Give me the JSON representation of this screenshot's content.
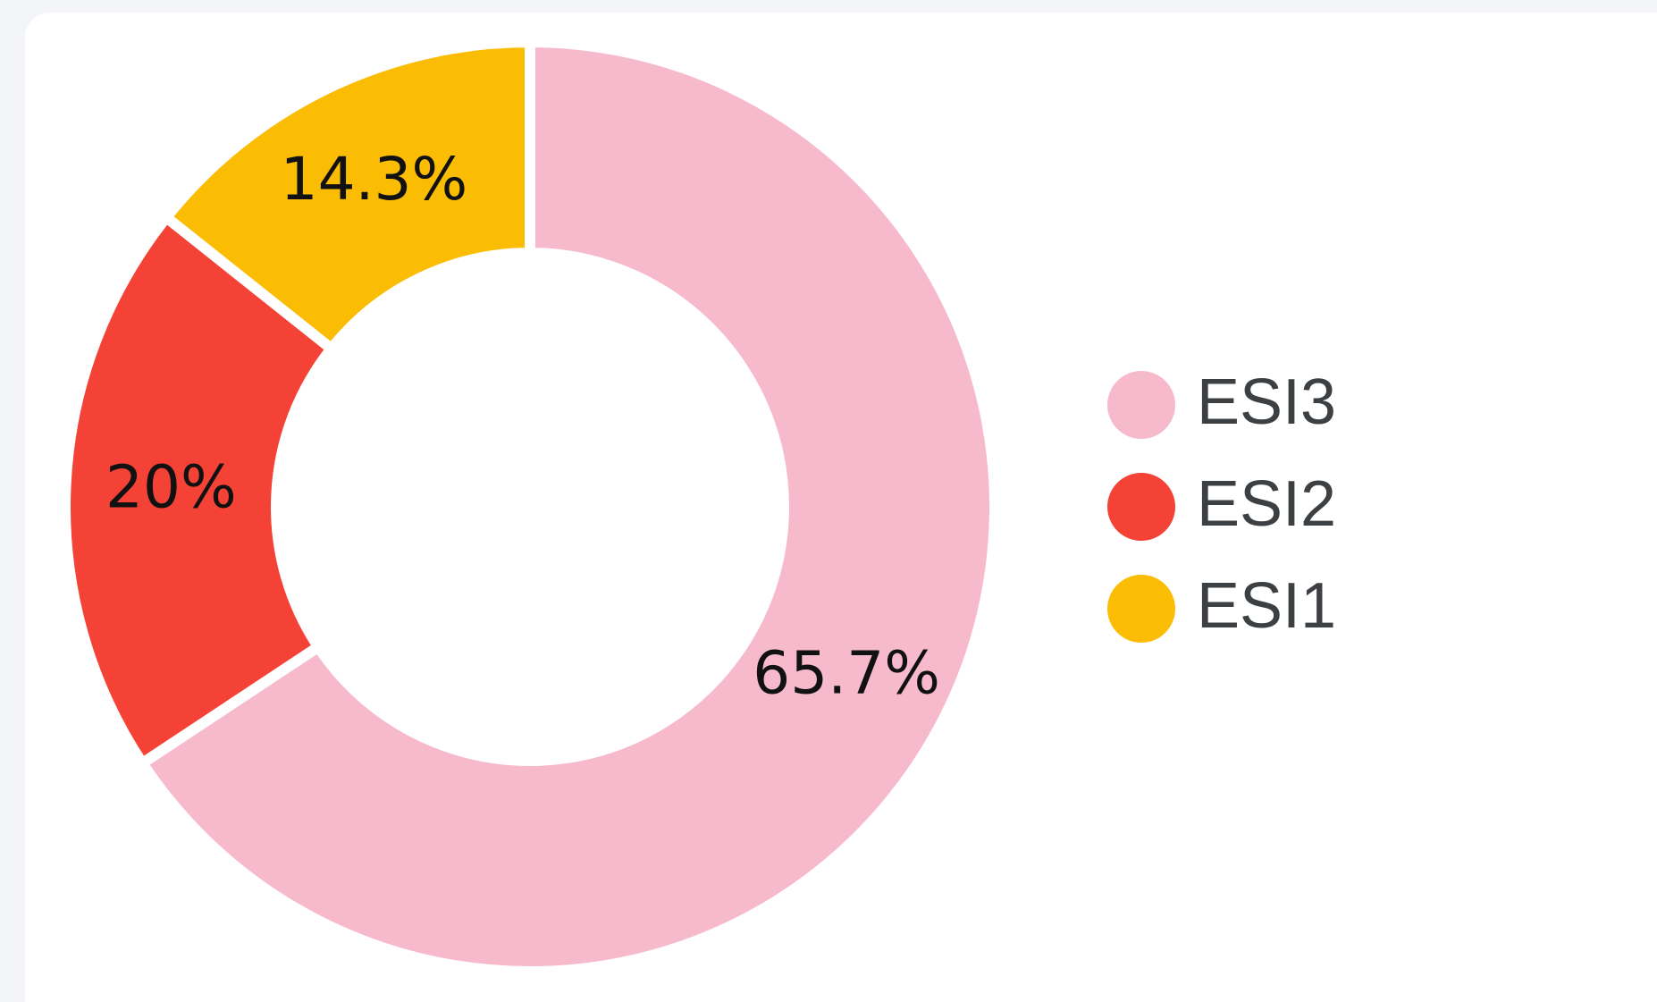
{
  "chart_data": {
    "type": "donut",
    "categories": [
      "ESI3",
      "ESI2",
      "ESI1"
    ],
    "values": [
      65.7,
      20,
      14.3
    ],
    "value_labels": [
      "65.7%",
      "20%",
      "14.3%"
    ],
    "colors": [
      "#f7b9cc",
      "#f44336",
      "#fbbc04"
    ],
    "legend": "right"
  }
}
